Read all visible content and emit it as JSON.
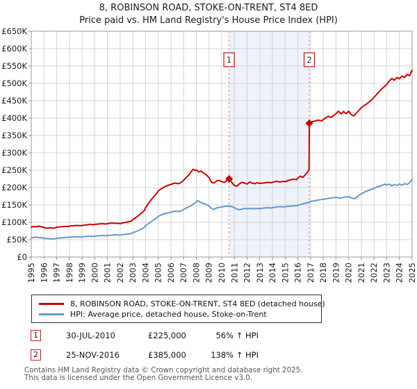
{
  "title": {
    "line1": "8, ROBINSON ROAD, STOKE-ON-TRENT, ST4 8ED",
    "line2": "Price paid vs. HM Land Registry's House Price Index (HPI)"
  },
  "chart_data": {
    "type": "line",
    "title": "8, ROBINSON ROAD, STOKE-ON-TRENT, ST4 8ED",
    "subtitle": "Price paid vs. HM Land Registry's House Price Index (HPI)",
    "xlabel": "",
    "ylabel": "",
    "grid": true,
    "x_axis": {
      "min": 1995,
      "max": 2025,
      "ticks": [
        1995,
        1996,
        1997,
        1998,
        1999,
        2000,
        2001,
        2002,
        2003,
        2004,
        2005,
        2006,
        2007,
        2008,
        2009,
        2010,
        2011,
        2012,
        2013,
        2014,
        2015,
        2016,
        2017,
        2018,
        2019,
        2020,
        2021,
        2022,
        2023,
        2024,
        2025
      ]
    },
    "y_axis": {
      "min": 0,
      "max": 650000,
      "tick_step": 50000,
      "tick_labels": [
        "£0",
        "£50K",
        "£100K",
        "£150K",
        "£200K",
        "£250K",
        "£300K",
        "£350K",
        "£400K",
        "£450K",
        "£500K",
        "£550K",
        "£600K",
        "£650K"
      ]
    },
    "style": {
      "band": "#edf2fb",
      "dashed": "#f09090",
      "grid": "#d4d4d4",
      "spine": "#999999",
      "tick": "#888888",
      "marker_box_border": "#c02020"
    },
    "series": [
      {
        "name": "8, ROBINSON ROAD, STOKE-ON-TRENT, ST4 8ED (detached house)",
        "color": "#cc0000",
        "points": [
          [
            1995,
            86000
          ],
          [
            1995.2,
            88000
          ],
          [
            1995.4,
            87000
          ],
          [
            1995.6,
            89000
          ],
          [
            1995.8,
            87000
          ],
          [
            1996,
            85000
          ],
          [
            1996.2,
            83000
          ],
          [
            1996.5,
            84000
          ],
          [
            1996.8,
            83000
          ],
          [
            1997,
            86000
          ],
          [
            1997.3,
            87000
          ],
          [
            1997.6,
            88000
          ],
          [
            1997.9,
            88000
          ],
          [
            1998,
            89000
          ],
          [
            1998.3,
            90000
          ],
          [
            1998.6,
            91000
          ],
          [
            1998.9,
            90000
          ],
          [
            1999,
            91000
          ],
          [
            1999.3,
            92000
          ],
          [
            1999.6,
            94000
          ],
          [
            1999.9,
            93000
          ],
          [
            2000,
            94000
          ],
          [
            2000.3,
            95000
          ],
          [
            2000.6,
            96000
          ],
          [
            2000.9,
            95000
          ],
          [
            2001,
            96000
          ],
          [
            2001.3,
            98000
          ],
          [
            2001.6,
            97000
          ],
          [
            2001.9,
            97000
          ],
          [
            2002,
            96000
          ],
          [
            2002.3,
            99000
          ],
          [
            2002.6,
            101000
          ],
          [
            2002.9,
            104000
          ],
          [
            2003,
            108000
          ],
          [
            2003.3,
            115000
          ],
          [
            2003.6,
            124000
          ],
          [
            2003.9,
            134000
          ],
          [
            2004,
            142000
          ],
          [
            2004.3,
            158000
          ],
          [
            2004.6,
            172000
          ],
          [
            2004.9,
            184000
          ],
          [
            2005,
            190000
          ],
          [
            2005.3,
            198000
          ],
          [
            2005.6,
            204000
          ],
          [
            2005.9,
            208000
          ],
          [
            2006,
            209000
          ],
          [
            2006.3,
            213000
          ],
          [
            2006.6,
            211000
          ],
          [
            2006.9,
            217000
          ],
          [
            2007,
            221000
          ],
          [
            2007.2,
            229000
          ],
          [
            2007.4,
            236000
          ],
          [
            2007.6,
            246000
          ],
          [
            2007.75,
            253000
          ],
          [
            2007.9,
            249000
          ],
          [
            2008,
            251000
          ],
          [
            2008.2,
            245000
          ],
          [
            2008.4,
            247000
          ],
          [
            2008.6,
            241000
          ],
          [
            2008.8,
            236000
          ],
          [
            2009,
            229000
          ],
          [
            2009.2,
            215000
          ],
          [
            2009.4,
            213000
          ],
          [
            2009.6,
            219000
          ],
          [
            2009.8,
            221000
          ],
          [
            2010,
            217000
          ],
          [
            2010.2,
            215000
          ],
          [
            2010.4,
            220000
          ],
          [
            2010.58,
            225000
          ],
          [
            2010.75,
            217000
          ],
          [
            2010.9,
            210000
          ],
          [
            2011,
            206000
          ],
          [
            2011.2,
            204000
          ],
          [
            2011.4,
            211000
          ],
          [
            2011.6,
            215000
          ],
          [
            2011.8,
            213000
          ],
          [
            2012,
            210000
          ],
          [
            2012.2,
            216000
          ],
          [
            2012.4,
            213000
          ],
          [
            2012.6,
            211000
          ],
          [
            2012.8,
            214000
          ],
          [
            2013,
            212000
          ],
          [
            2013.3,
            213000
          ],
          [
            2013.6,
            215000
          ],
          [
            2013.9,
            214000
          ],
          [
            2014,
            215000
          ],
          [
            2014.3,
            218000
          ],
          [
            2014.6,
            216000
          ],
          [
            2014.9,
            218000
          ],
          [
            2015,
            217000
          ],
          [
            2015.3,
            221000
          ],
          [
            2015.6,
            224000
          ],
          [
            2015.9,
            223000
          ],
          [
            2016,
            227000
          ],
          [
            2016.2,
            233000
          ],
          [
            2016.4,
            229000
          ],
          [
            2016.6,
            238000
          ],
          [
            2016.8,
            246000
          ],
          [
            2016.88,
            252000
          ],
          [
            2016.9,
            385000
          ],
          [
            2017,
            388000
          ],
          [
            2017.3,
            391000
          ],
          [
            2017.6,
            394000
          ],
          [
            2017.9,
            392000
          ],
          [
            2018,
            396000
          ],
          [
            2018.2,
            401000
          ],
          [
            2018.4,
            405000
          ],
          [
            2018.6,
            402000
          ],
          [
            2018.8,
            407000
          ],
          [
            2019,
            413000
          ],
          [
            2019.2,
            420000
          ],
          [
            2019.4,
            412000
          ],
          [
            2019.6,
            419000
          ],
          [
            2019.8,
            413000
          ],
          [
            2020,
            420000
          ],
          [
            2020.2,
            410000
          ],
          [
            2020.4,
            406000
          ],
          [
            2020.6,
            414000
          ],
          [
            2020.8,
            422000
          ],
          [
            2021,
            430000
          ],
          [
            2021.2,
            436000
          ],
          [
            2021.4,
            440000
          ],
          [
            2021.6,
            446000
          ],
          [
            2021.8,
            452000
          ],
          [
            2022,
            460000
          ],
          [
            2022.2,
            468000
          ],
          [
            2022.4,
            476000
          ],
          [
            2022.6,
            484000
          ],
          [
            2022.8,
            490000
          ],
          [
            2023,
            497000
          ],
          [
            2023.2,
            507000
          ],
          [
            2023.4,
            514000
          ],
          [
            2023.6,
            509000
          ],
          [
            2023.8,
            517000
          ],
          [
            2024,
            513000
          ],
          [
            2024.2,
            521000
          ],
          [
            2024.4,
            517000
          ],
          [
            2024.6,
            526000
          ],
          [
            2024.8,
            522000
          ],
          [
            2025,
            538000
          ]
        ]
      },
      {
        "name": "HPI: Average price, detached house, Stoke-on-Trent",
        "color": "#6699cc",
        "points": [
          [
            1995,
            55000
          ],
          [
            1995.3,
            57000
          ],
          [
            1995.6,
            56000
          ],
          [
            1995.9,
            55000
          ],
          [
            1996,
            54000
          ],
          [
            1996.3,
            53000
          ],
          [
            1996.6,
            52000
          ],
          [
            1996.9,
            53000
          ],
          [
            1997,
            54000
          ],
          [
            1997.3,
            55000
          ],
          [
            1997.6,
            56000
          ],
          [
            1997.9,
            57000
          ],
          [
            1998,
            57000
          ],
          [
            1998.3,
            58000
          ],
          [
            1998.6,
            58000
          ],
          [
            1998.9,
            57000
          ],
          [
            1999,
            58000
          ],
          [
            1999.3,
            59000
          ],
          [
            1999.6,
            60000
          ],
          [
            1999.9,
            59000
          ],
          [
            2000,
            60000
          ],
          [
            2000.3,
            61000
          ],
          [
            2000.6,
            62000
          ],
          [
            2000.9,
            61000
          ],
          [
            2001,
            62000
          ],
          [
            2001.3,
            63000
          ],
          [
            2001.6,
            64000
          ],
          [
            2001.9,
            63000
          ],
          [
            2002,
            63000
          ],
          [
            2002.3,
            65000
          ],
          [
            2002.6,
            66000
          ],
          [
            2002.9,
            68000
          ],
          [
            2003,
            70000
          ],
          [
            2003.3,
            74000
          ],
          [
            2003.6,
            79000
          ],
          [
            2003.9,
            85000
          ],
          [
            2004,
            90000
          ],
          [
            2004.3,
            98000
          ],
          [
            2004.6,
            106000
          ],
          [
            2004.9,
            113000
          ],
          [
            2005,
            117000
          ],
          [
            2005.3,
            122000
          ],
          [
            2005.6,
            126000
          ],
          [
            2005.9,
            128000
          ],
          [
            2006,
            129000
          ],
          [
            2006.3,
            132000
          ],
          [
            2006.6,
            131000
          ],
          [
            2006.9,
            134000
          ],
          [
            2007,
            137000
          ],
          [
            2007.2,
            141000
          ],
          [
            2007.4,
            144000
          ],
          [
            2007.6,
            148000
          ],
          [
            2007.8,
            153000
          ],
          [
            2008,
            159000
          ],
          [
            2008.1,
            163000
          ],
          [
            2008.3,
            158000
          ],
          [
            2008.5,
            155000
          ],
          [
            2008.8,
            151000
          ],
          [
            2009,
            147000
          ],
          [
            2009.2,
            140000
          ],
          [
            2009.4,
            137000
          ],
          [
            2009.6,
            141000
          ],
          [
            2009.8,
            143000
          ],
          [
            2010,
            144000
          ],
          [
            2010.3,
            146000
          ],
          [
            2010.6,
            147000
          ],
          [
            2010.9,
            144000
          ],
          [
            2011,
            142000
          ],
          [
            2011.2,
            138000
          ],
          [
            2011.4,
            136000
          ],
          [
            2011.6,
            138000
          ],
          [
            2011.8,
            140000
          ],
          [
            2012,
            139000
          ],
          [
            2012.3,
            140000
          ],
          [
            2012.6,
            139000
          ],
          [
            2012.9,
            140000
          ],
          [
            2013,
            139000
          ],
          [
            2013.3,
            141000
          ],
          [
            2013.6,
            142000
          ],
          [
            2013.9,
            141000
          ],
          [
            2014,
            142000
          ],
          [
            2014.3,
            144000
          ],
          [
            2014.6,
            145000
          ],
          [
            2014.9,
            144000
          ],
          [
            2015,
            145000
          ],
          [
            2015.3,
            146000
          ],
          [
            2015.6,
            147000
          ],
          [
            2015.9,
            148000
          ],
          [
            2016,
            149000
          ],
          [
            2016.3,
            152000
          ],
          [
            2016.6,
            155000
          ],
          [
            2016.9,
            158000
          ],
          [
            2017,
            160000
          ],
          [
            2017.3,
            162000
          ],
          [
            2017.6,
            164000
          ],
          [
            2017.9,
            166000
          ],
          [
            2018,
            166000
          ],
          [
            2018.3,
            168000
          ],
          [
            2018.6,
            170000
          ],
          [
            2018.9,
            171000
          ],
          [
            2019,
            172000
          ],
          [
            2019.2,
            170000
          ],
          [
            2019.4,
            169000
          ],
          [
            2019.6,
            172000
          ],
          [
            2019.8,
            173000
          ],
          [
            2020,
            174000
          ],
          [
            2020.2,
            170000
          ],
          [
            2020.5,
            168000
          ],
          [
            2020.8,
            178000
          ],
          [
            2021,
            182000
          ],
          [
            2021.3,
            188000
          ],
          [
            2021.6,
            192000
          ],
          [
            2021.9,
            196000
          ],
          [
            2022,
            198000
          ],
          [
            2022.3,
            202000
          ],
          [
            2022.6,
            206000
          ],
          [
            2022.9,
            210000
          ],
          [
            2023,
            207000
          ],
          [
            2023.2,
            210000
          ],
          [
            2023.4,
            205000
          ],
          [
            2023.6,
            209000
          ],
          [
            2023.8,
            206000
          ],
          [
            2024,
            210000
          ],
          [
            2024.2,
            207000
          ],
          [
            2024.4,
            211000
          ],
          [
            2024.6,
            209000
          ],
          [
            2024.8,
            213000
          ],
          [
            2025,
            224000
          ]
        ]
      }
    ],
    "shaded_region": {
      "from_year": 2010.58,
      "to_year": 2016.9
    },
    "markers": [
      {
        "label": "1",
        "date": "30-JUL-2010",
        "year": 2010.58,
        "price": 225000,
        "price_label": "£225,000",
        "hpi_note": "56% ↑ HPI"
      },
      {
        "label": "2",
        "date": "25-NOV-2016",
        "year": 2016.9,
        "price": 385000,
        "price_label": "£385,000",
        "hpi_note": "138% ↑ HPI"
      }
    ],
    "legend_position": "bottom"
  },
  "footer": {
    "line1": "Contains HM Land Registry data © Crown copyright and database right 2025.",
    "line2": "This data is licensed under the Open Government Licence v3.0."
  }
}
